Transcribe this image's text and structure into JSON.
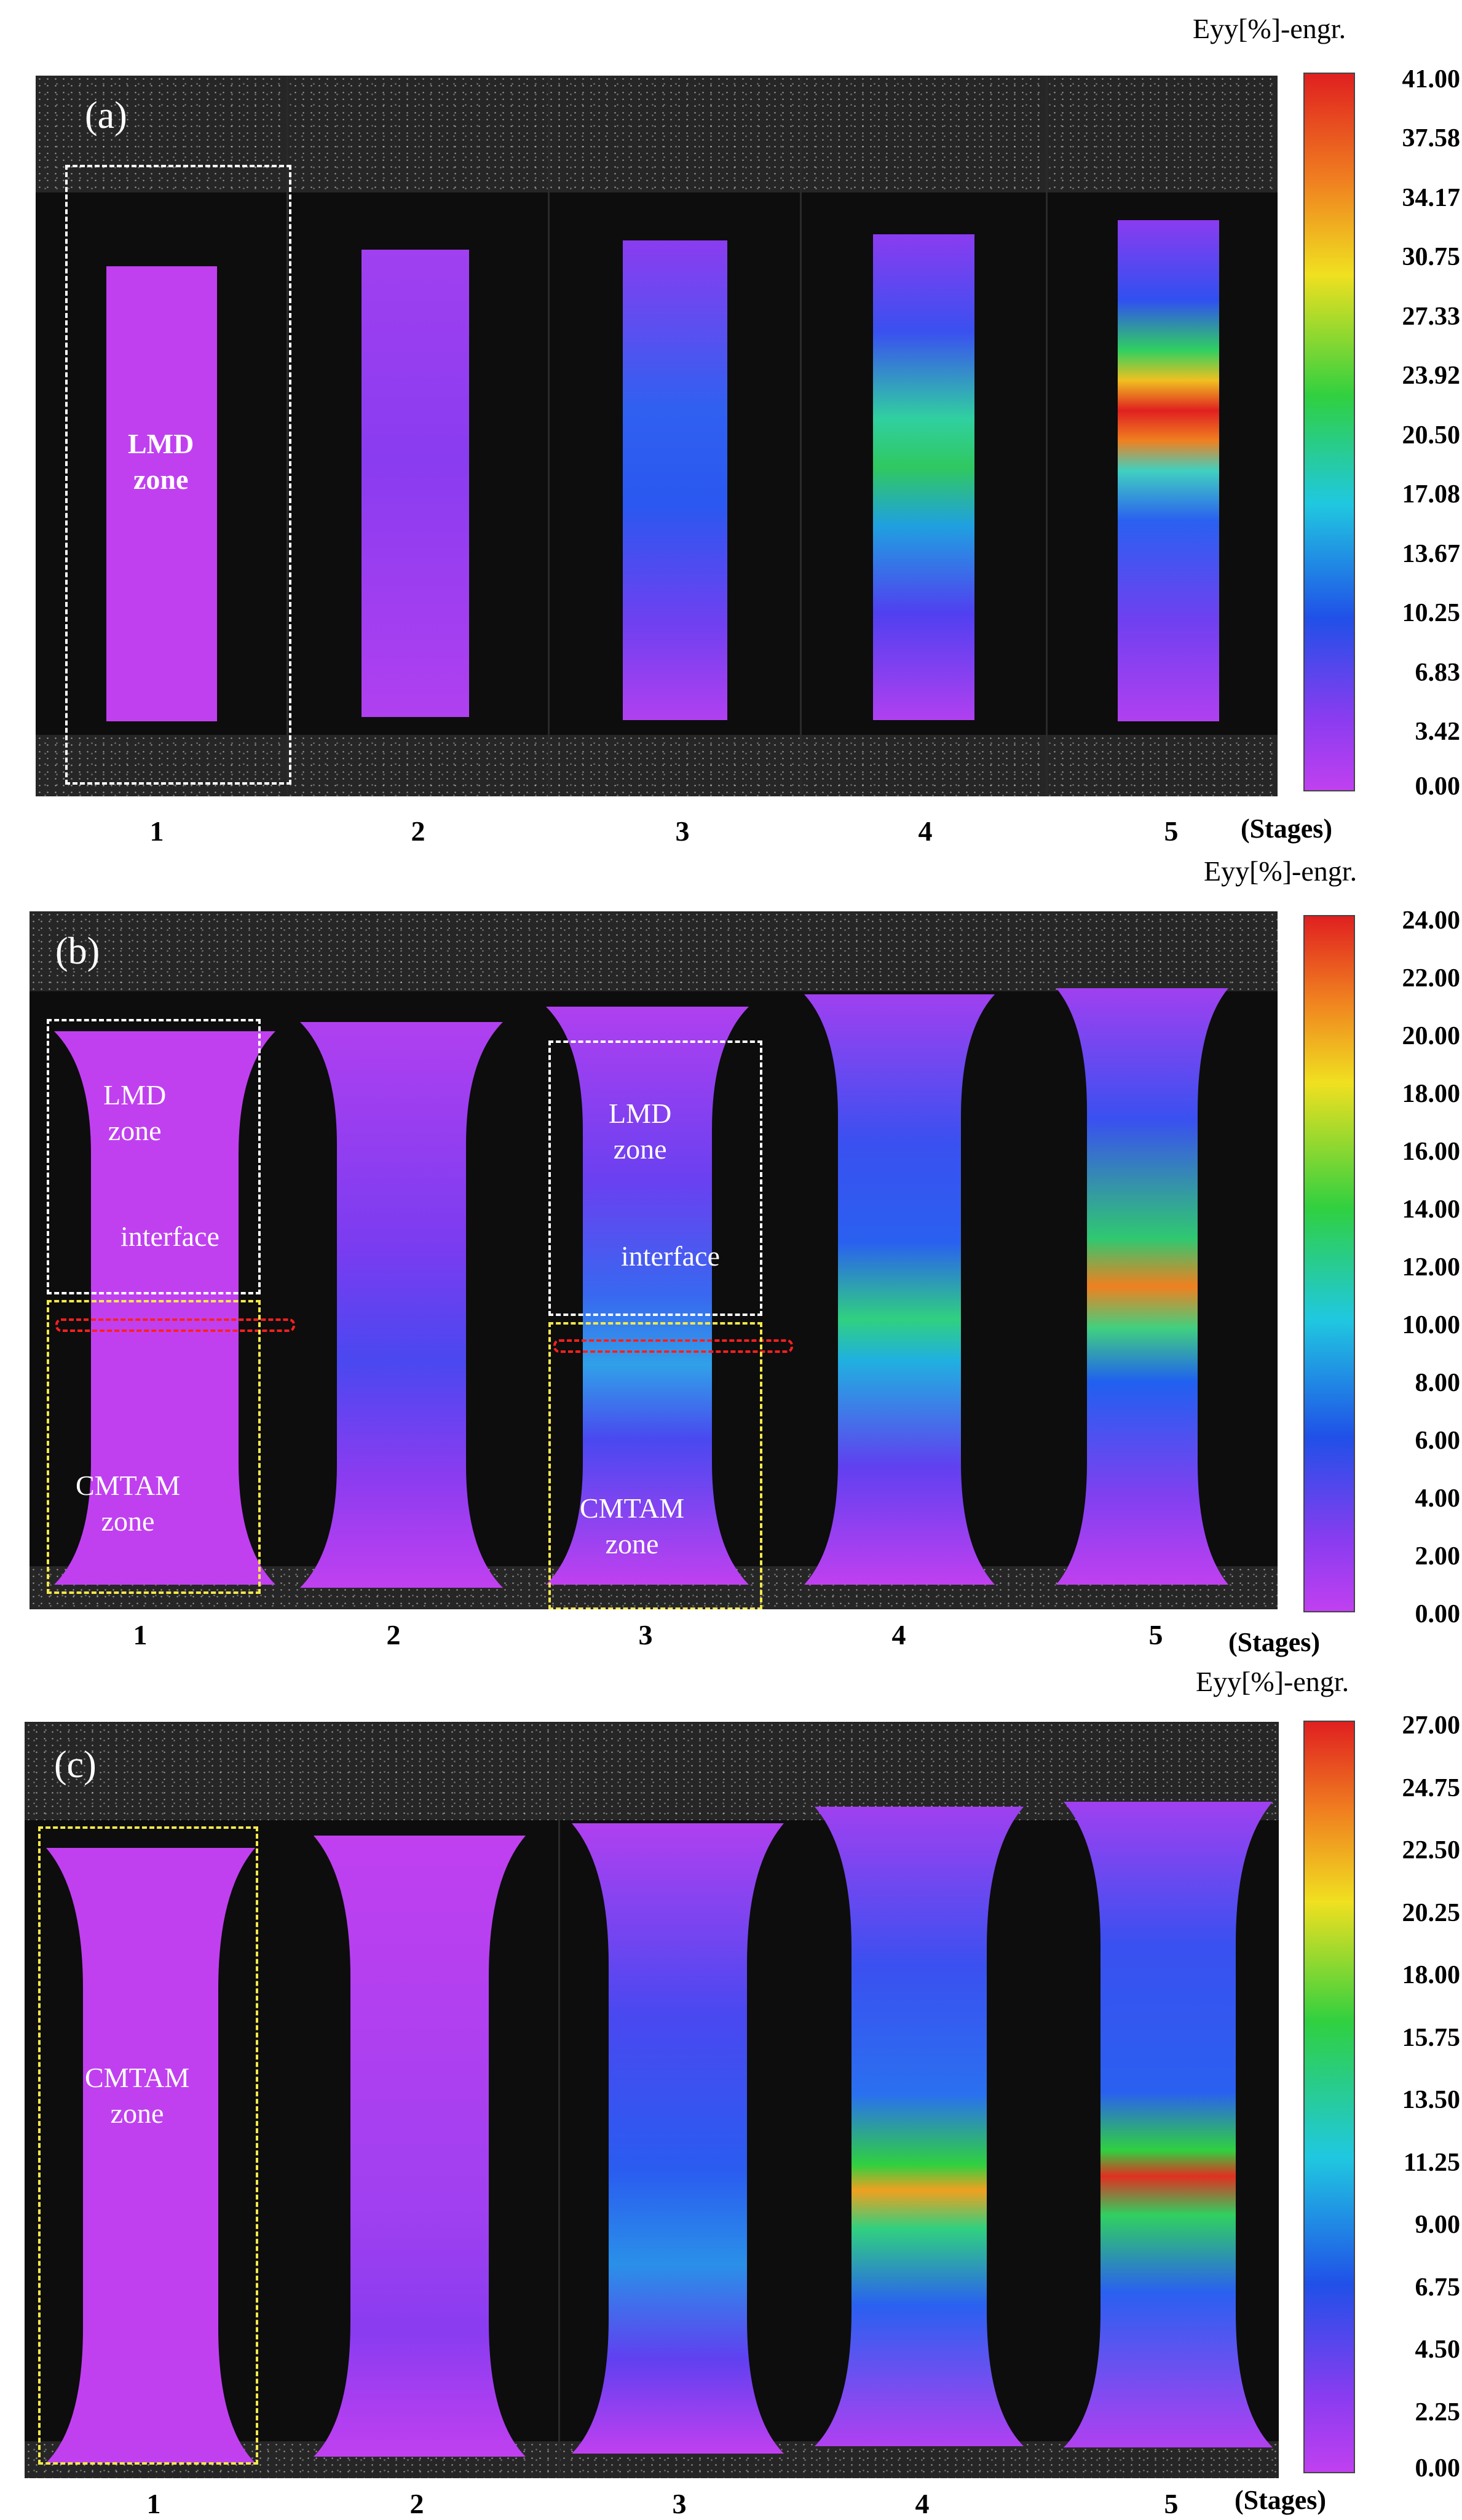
{
  "panels": [
    {
      "letter": "(a)",
      "legend_title": "Eyy[%]-engr.",
      "ticks": [
        "41.00",
        "37.58",
        "34.17",
        "30.75",
        "27.33",
        "23.92",
        "20.50",
        "17.08",
        "13.67",
        "10.25",
        "6.83",
        "3.42",
        "0.00"
      ],
      "zones": [
        {
          "line1": "LMD",
          "line2": "zone"
        }
      ],
      "stages": [
        "1",
        "2",
        "3",
        "4",
        "5"
      ],
      "stages_title": "(Stages)"
    },
    {
      "letter": "(b)",
      "legend_title": "Eyy[%]-engr.",
      "ticks": [
        "24.00",
        "22.00",
        "20.00",
        "18.00",
        "16.00",
        "14.00",
        "12.00",
        "10.00",
        "8.00",
        "6.00",
        "4.00",
        "2.00",
        "0.00"
      ],
      "zones": [
        {
          "line1": "LMD",
          "line2": "zone"
        },
        {
          "line1": "interface",
          "line2": ""
        },
        {
          "line1": "CMTAM",
          "line2": "zone"
        },
        {
          "line1": "LMD",
          "line2": "zone"
        },
        {
          "line1": "interface",
          "line2": ""
        },
        {
          "line1": "CMTAM",
          "line2": "zone"
        }
      ],
      "stages": [
        "1",
        "2",
        "3",
        "4",
        "5"
      ],
      "stages_title": "(Stages)"
    },
    {
      "letter": "(c)",
      "legend_title": "Eyy[%]-engr.",
      "ticks": [
        "27.00",
        "24.75",
        "22.50",
        "20.25",
        "18.00",
        "15.75",
        "13.50",
        "11.25",
        "9.00",
        "6.75",
        "4.50",
        "2.25",
        "0.00"
      ],
      "zones": [
        {
          "line1": "CMTAM",
          "line2": "zone"
        }
      ],
      "stages": [
        "1",
        "2",
        "3",
        "4",
        "5"
      ],
      "stages_title": "(Stages)"
    }
  ],
  "colors": {
    "magenta": "#c040f0",
    "violet": "#8a3cf0",
    "blue": "#2050e8",
    "cyan": "#20c8e0",
    "green": "#30d040",
    "yellow": "#f0e020",
    "orange": "#f08020",
    "red": "#e02020",
    "dash_white": "#ffffff",
    "dash_yellow": "#f5e84a",
    "dash_red": "#ff2020"
  }
}
